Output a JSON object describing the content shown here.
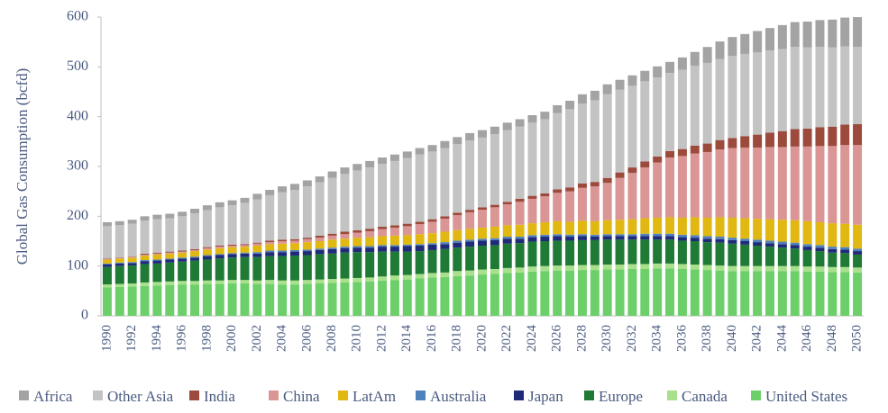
{
  "chart_data": {
    "type": "stacked-bar",
    "y_label": "Global Gas Consumption (bcfd)",
    "categories": [
      "1990",
      null,
      "1992",
      null,
      "1994",
      null,
      "1996",
      null,
      "1998",
      null,
      "2000",
      null,
      "2002",
      null,
      "2004",
      null,
      "2006",
      null,
      "2008",
      null,
      "2010",
      null,
      "2012",
      null,
      "2014",
      null,
      "2016",
      null,
      "2018",
      null,
      "2020",
      null,
      "2022",
      null,
      "2024",
      null,
      "2026",
      null,
      "2028",
      null,
      "2030",
      null,
      "2032",
      null,
      "2034",
      null,
      "2036",
      null,
      "2038",
      null,
      "2040",
      null,
      "2042",
      null,
      "2044",
      null,
      "2046",
      null,
      "2048",
      null,
      "2050"
    ],
    "ylim": [
      0,
      600
    ],
    "yticks": [
      0,
      100,
      200,
      300,
      400,
      500,
      600
    ],
    "grid": false,
    "legend": "bottom",
    "series": [
      {
        "name": "United States",
        "color": "#6dcf6a",
        "values": [
          57,
          58,
          59,
          60,
          61,
          62,
          63,
          63,
          64,
          64,
          65,
          65,
          64,
          64,
          63,
          63,
          64,
          65,
          66,
          67,
          68,
          69,
          71,
          72,
          73,
          75,
          77,
          78,
          80,
          81,
          83,
          84,
          86,
          87,
          89,
          90,
          91,
          91,
          92,
          92,
          93,
          93,
          94,
          94,
          95,
          95,
          94,
          93,
          92,
          91,
          90,
          90,
          90,
          90,
          90,
          90,
          89,
          89,
          88,
          88,
          87
        ]
      },
      {
        "name": "Canada",
        "color": "#a9e08c",
        "values": [
          6,
          6,
          6,
          7,
          7,
          7,
          7,
          7,
          7,
          7,
          7,
          7,
          7,
          8,
          8,
          8,
          8,
          8,
          8,
          8,
          8,
          8,
          8,
          9,
          9,
          9,
          9,
          9,
          10,
          10,
          10,
          10,
          10,
          10,
          10,
          10,
          10,
          10,
          10,
          10,
          10,
          10,
          10,
          10,
          10,
          10,
          10,
          10,
          10,
          10,
          10,
          10,
          10,
          10,
          10,
          10,
          10,
          10,
          10,
          10,
          10
        ]
      },
      {
        "name": "Europe",
        "color": "#1f7a35",
        "values": [
          35,
          36,
          36,
          37,
          37,
          38,
          39,
          41,
          42,
          44,
          45,
          46,
          47,
          48,
          49,
          50,
          50,
          51,
          51,
          52,
          52,
          51,
          50,
          48,
          47,
          46,
          46,
          47,
          47,
          48,
          48,
          48,
          49,
          49,
          50,
          50,
          50,
          50,
          50,
          50,
          50,
          50,
          49,
          49,
          48,
          48,
          47,
          47,
          46,
          46,
          45,
          43,
          41,
          39,
          37,
          35,
          33,
          31,
          29,
          28,
          26
        ]
      },
      {
        "name": "Japan",
        "color": "#1f2b78",
        "values": [
          5,
          5,
          5,
          6,
          6,
          6,
          6,
          6,
          7,
          7,
          7,
          7,
          7,
          8,
          8,
          8,
          8,
          8,
          9,
          9,
          9,
          9,
          10,
          10,
          11,
          11,
          11,
          10,
          10,
          10,
          10,
          10,
          10,
          9,
          9,
          9,
          9,
          8,
          8,
          7,
          7,
          7,
          7,
          7,
          7,
          7,
          7,
          7,
          7,
          7,
          7,
          7,
          7,
          7,
          7,
          7,
          7,
          7,
          7,
          7,
          7
        ]
      },
      {
        "name": "Australia",
        "color": "#4f81bd",
        "values": [
          2,
          2,
          2,
          2,
          2,
          2,
          2,
          2,
          2,
          2,
          2,
          2,
          3,
          3,
          3,
          3,
          3,
          3,
          3,
          3,
          3,
          3,
          3,
          3,
          3,
          3,
          3,
          4,
          4,
          4,
          4,
          4,
          4,
          4,
          4,
          4,
          4,
          4,
          4,
          4,
          4,
          4,
          4,
          5,
          5,
          5,
          5,
          5,
          5,
          5,
          5,
          5,
          5,
          5,
          5,
          5,
          5,
          5,
          5,
          5,
          5
        ]
      },
      {
        "name": "LatAm",
        "color": "#e1b812",
        "values": [
          8,
          8,
          9,
          9,
          10,
          10,
          10,
          11,
          11,
          12,
          12,
          12,
          13,
          13,
          14,
          14,
          15,
          15,
          16,
          16,
          17,
          18,
          18,
          19,
          19,
          20,
          20,
          21,
          21,
          22,
          22,
          23,
          23,
          24,
          24,
          25,
          26,
          26,
          27,
          27,
          28,
          29,
          30,
          31,
          32,
          33,
          34,
          36,
          37,
          39,
          40,
          41,
          42,
          43,
          44,
          45,
          46,
          46,
          47,
          47,
          48
        ]
      },
      {
        "name": "China",
        "color": "#d99694",
        "values": [
          1,
          1,
          1,
          2,
          2,
          2,
          2,
          2,
          3,
          3,
          3,
          3,
          4,
          4,
          5,
          5,
          6,
          7,
          8,
          9,
          10,
          12,
          14,
          16,
          18,
          20,
          23,
          26,
          30,
          33,
          36,
          39,
          42,
          46,
          49,
          52,
          57,
          61,
          66,
          70,
          75,
          84,
          93,
          102,
          111,
          120,
          124,
          128,
          132,
          136,
          140,
          142,
          143,
          145,
          146,
          148,
          150,
          153,
          155,
          158,
          160
        ]
      },
      {
        "name": "India",
        "color": "#9c4a3c",
        "values": [
          1,
          1,
          1,
          2,
          2,
          2,
          2,
          2,
          2,
          2,
          2,
          2,
          2,
          3,
          3,
          3,
          3,
          4,
          4,
          5,
          5,
          5,
          5,
          5,
          5,
          5,
          5,
          5,
          5,
          5,
          5,
          5,
          5,
          6,
          6,
          6,
          7,
          8,
          9,
          9,
          10,
          11,
          11,
          12,
          12,
          13,
          14,
          16,
          17,
          19,
          20,
          23,
          26,
          29,
          32,
          35,
          36,
          38,
          39,
          41,
          42
        ]
      },
      {
        "name": "Other Asia",
        "color": "#c3c3c3",
        "values": [
          65,
          65,
          66,
          66,
          67,
          67,
          69,
          72,
          74,
          77,
          79,
          83,
          87,
          91,
          95,
          99,
          103,
          107,
          112,
          116,
          120,
          123,
          126,
          129,
          132,
          135,
          136,
          137,
          138,
          139,
          140,
          142,
          144,
          145,
          147,
          149,
          153,
          157,
          160,
          164,
          168,
          166,
          164,
          161,
          159,
          157,
          159,
          160,
          162,
          163,
          165,
          165,
          165,
          165,
          165,
          165,
          163,
          161,
          159,
          157,
          155
        ]
      },
      {
        "name": "Africa",
        "color": "#a3a3a3",
        "values": [
          8,
          8,
          8,
          9,
          9,
          9,
          9,
          9,
          10,
          10,
          10,
          10,
          11,
          11,
          12,
          12,
          12,
          12,
          13,
          13,
          13,
          13,
          13,
          13,
          13,
          13,
          13,
          14,
          14,
          15,
          15,
          15,
          15,
          15,
          15,
          15,
          16,
          17,
          19,
          19,
          20,
          20,
          21,
          21,
          22,
          22,
          25,
          28,
          32,
          35,
          38,
          40,
          43,
          45,
          48,
          50,
          52,
          54,
          56,
          58,
          60
        ]
      }
    ]
  }
}
